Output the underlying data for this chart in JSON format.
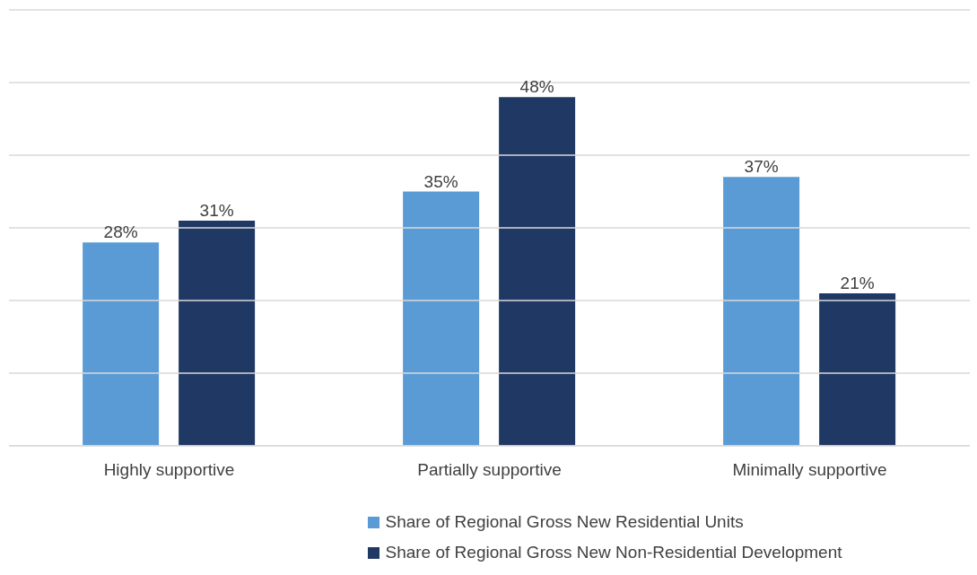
{
  "chart_data": {
    "type": "bar",
    "categories": [
      "Highly supportive",
      "Partially supportive",
      "Minimally  supportive"
    ],
    "series": [
      {
        "name": "Share of Regional Gross New Residential Units",
        "color": "#5b9bd5",
        "values": [
          28,
          35,
          37
        ],
        "value_labels": [
          "28%",
          "35%",
          "37%"
        ]
      },
      {
        "name": "Share of Regional Gross New Non-Residential Development",
        "color": "#203864",
        "values": [
          31,
          48,
          21
        ],
        "value_labels": [
          "31%",
          "48%",
          "21%"
        ]
      }
    ],
    "ylim": [
      0,
      60
    ],
    "yticks": [
      {
        "value": 0,
        "label": null
      },
      {
        "value": 10,
        "label": null
      },
      {
        "value": 20,
        "label": null
      },
      {
        "value": 30,
        "label": null
      },
      {
        "value": 40,
        "label": null
      },
      {
        "value": 50,
        "label": null
      },
      {
        "value": 60,
        "label": null
      }
    ],
    "tick_labels": "x",
    "grid": "y",
    "legend": "bottom"
  }
}
